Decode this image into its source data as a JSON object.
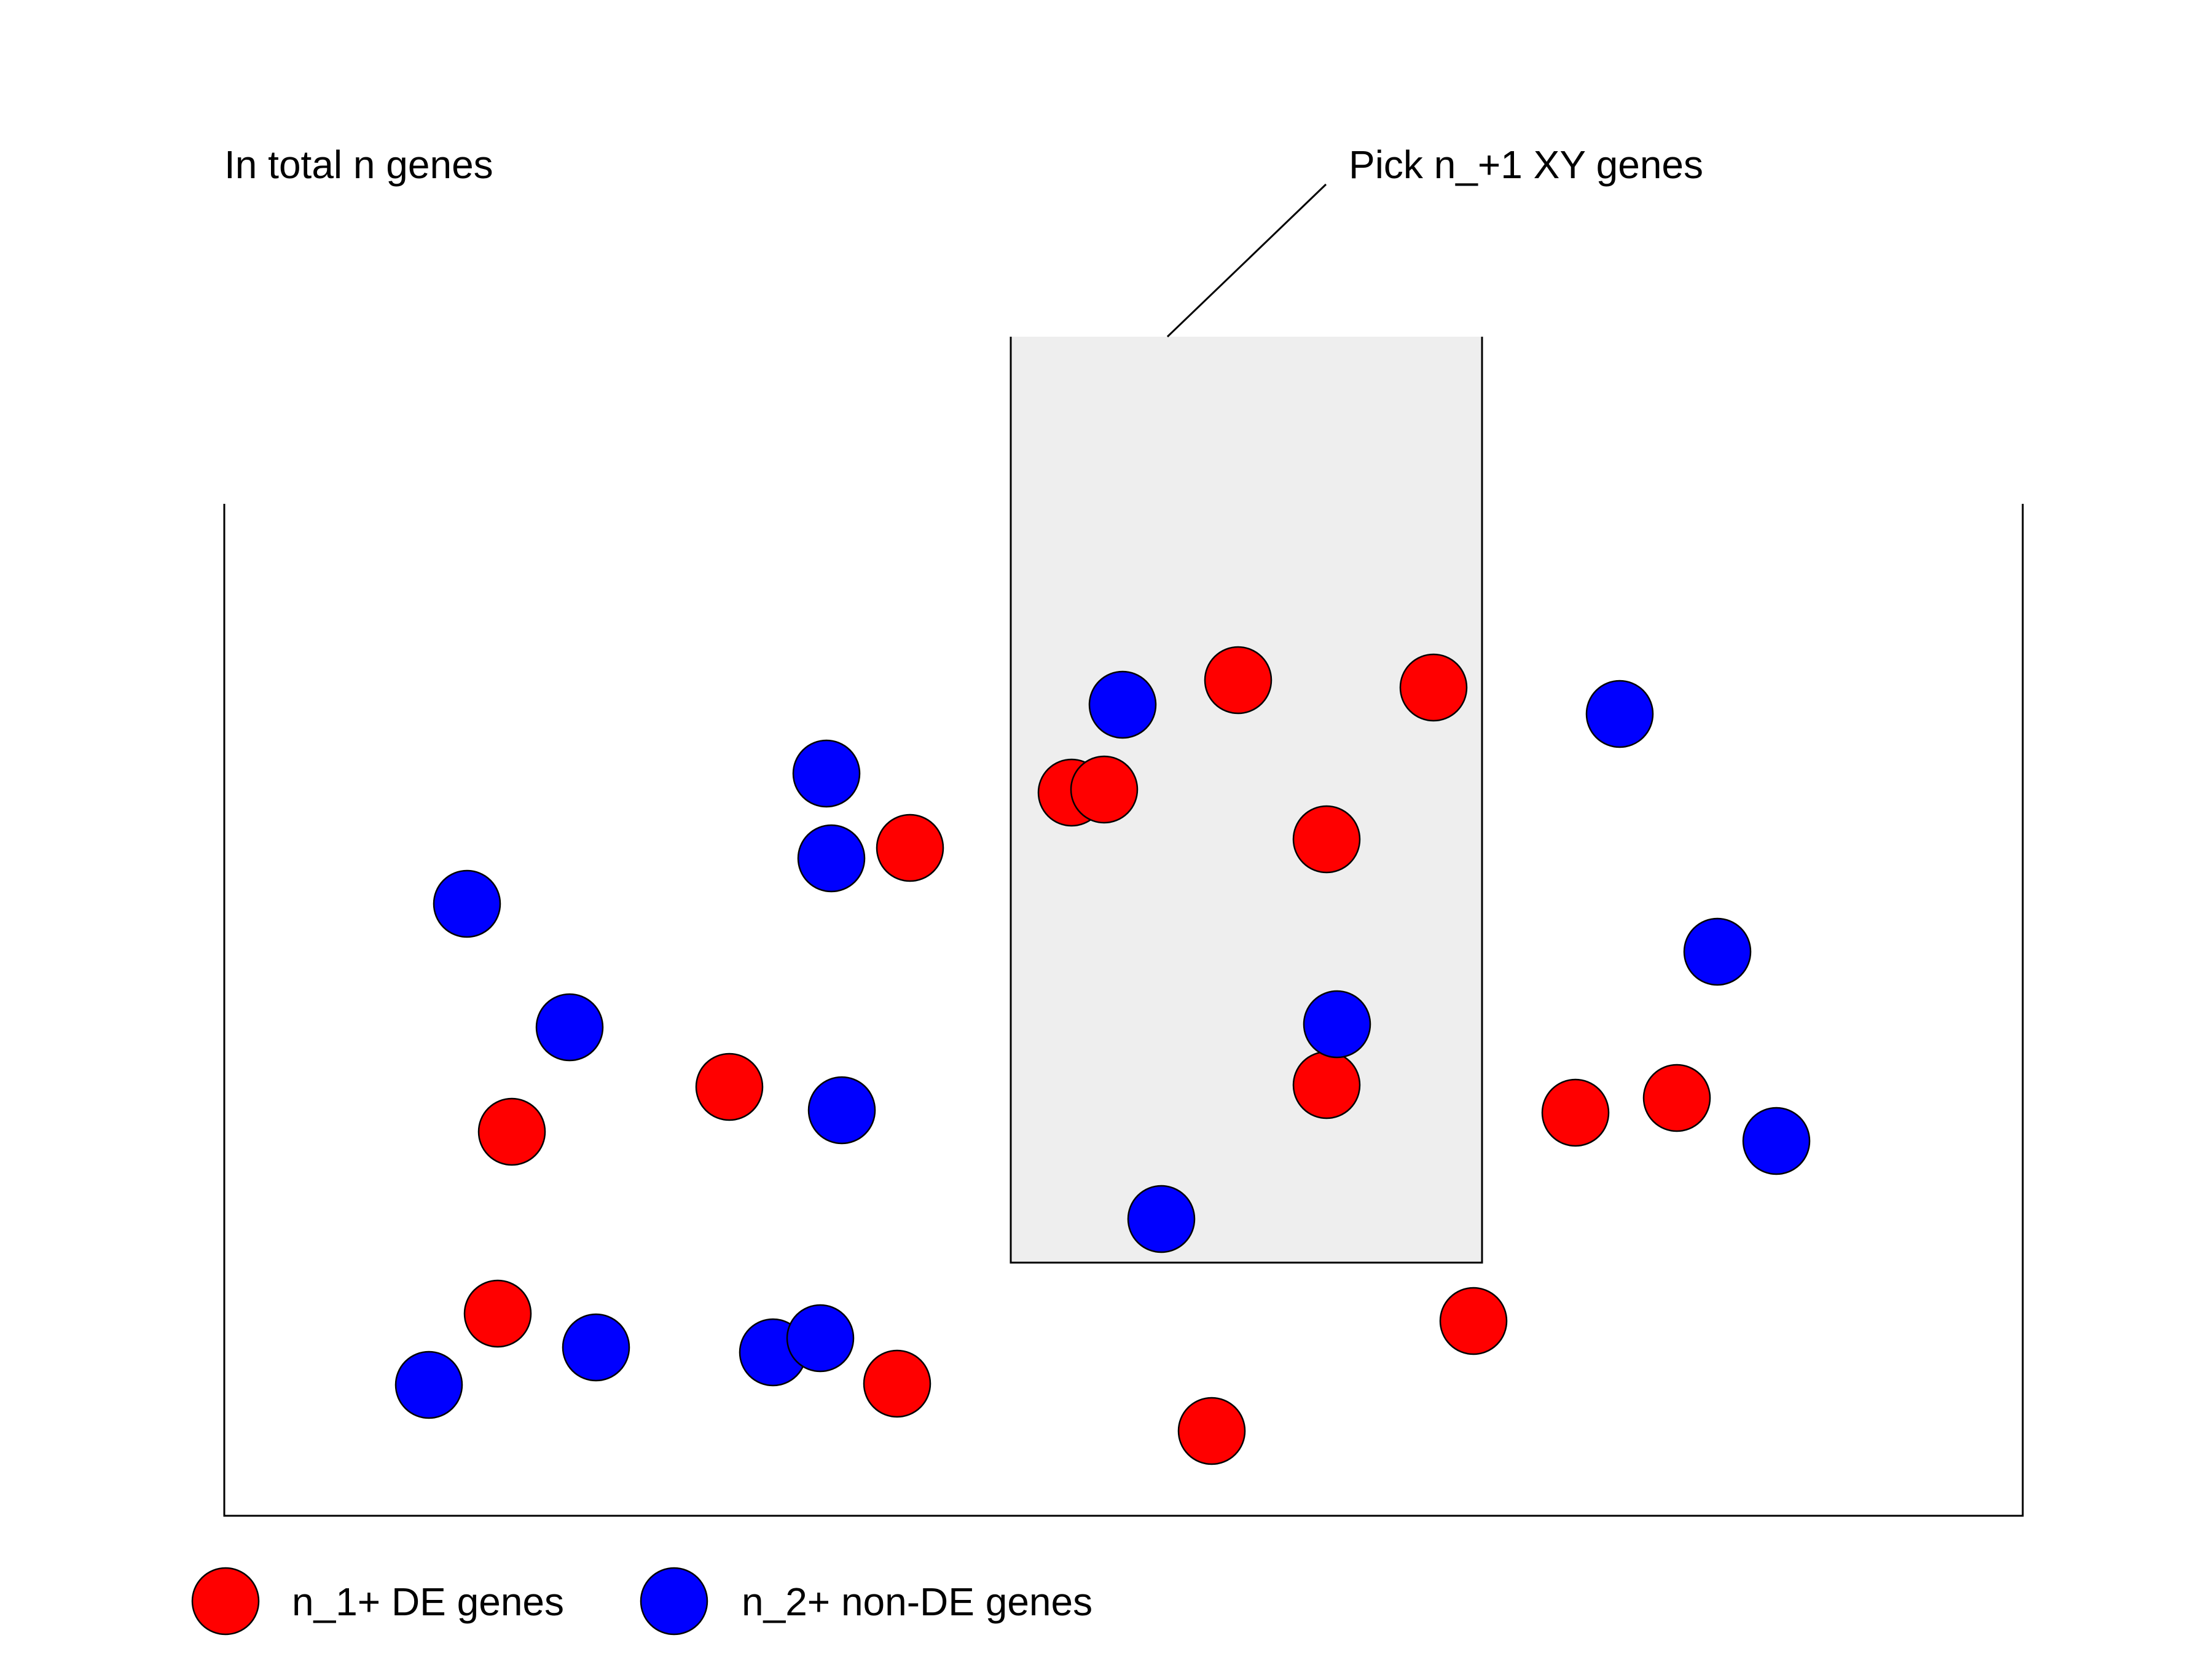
{
  "labels": {
    "total": "In total n genes",
    "pick": "Pick n_+1 XY genes"
  },
  "legend": [
    {
      "label": "n_1+ DE genes",
      "color": "#ff0000"
    },
    {
      "label": "n_2+ non-DE genes",
      "color": "#0000ff"
    }
  ],
  "colors": {
    "de": "#ff0000",
    "nonde": "#0000ff",
    "selection_fill": "#eeeeee",
    "stroke": "#000000"
  }
}
